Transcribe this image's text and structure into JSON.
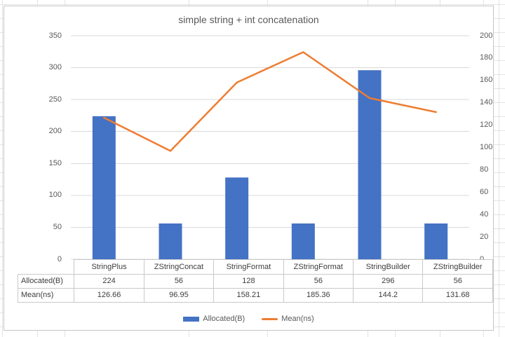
{
  "chart_data": {
    "type": "bar+line",
    "title": "simple string + int concatenation",
    "categories": [
      "StringPlus",
      "ZStringConcat",
      "StringFormat",
      "ZStringFormat",
      "StringBuilder",
      "ZStringBuilder"
    ],
    "series": [
      {
        "name": "Allocated(B)",
        "type": "bar",
        "axis": "left",
        "color": "#4472C4",
        "values": [
          224,
          56,
          128,
          56,
          296,
          56
        ]
      },
      {
        "name": "Mean(ns)",
        "type": "line",
        "axis": "right",
        "color": "#ED7D31",
        "values": [
          126.66,
          96.95,
          158.21,
          185.36,
          144.2,
          131.68
        ]
      }
    ],
    "left_axis": {
      "min": 0,
      "max": 350,
      "step": 50,
      "tick_labels": [
        "0",
        "50",
        "100",
        "150",
        "200",
        "250",
        "300",
        "350"
      ]
    },
    "right_axis": {
      "min": 0,
      "max": 200,
      "step": 20,
      "tick_labels": [
        "0",
        "20",
        "40",
        "60",
        "80",
        "100",
        "120",
        "140",
        "160",
        "180",
        "200"
      ]
    },
    "grid": true,
    "legend_position": "bottom",
    "gridline_color": "#D9D9D9",
    "title_color": "#595959"
  },
  "data_table": {
    "row_headers": [
      "Allocated(B)",
      "Mean(ns)"
    ],
    "columns": [
      "StringPlus",
      "ZStringConcat",
      "StringFormat",
      "ZStringFormat",
      "StringBuilder",
      "ZStringBuilder"
    ],
    "rows": [
      [
        "224",
        "56",
        "128",
        "56",
        "296",
        "56"
      ],
      [
        "126.66",
        "96.95",
        "158.21",
        "185.36",
        "144.2",
        "131.68"
      ]
    ]
  },
  "legend": {
    "items": [
      {
        "label": "Allocated(B)",
        "color": "#4472C4",
        "marker": "rect"
      },
      {
        "label": "Mean(ns)",
        "color": "#ED7D31",
        "marker": "line"
      }
    ]
  }
}
